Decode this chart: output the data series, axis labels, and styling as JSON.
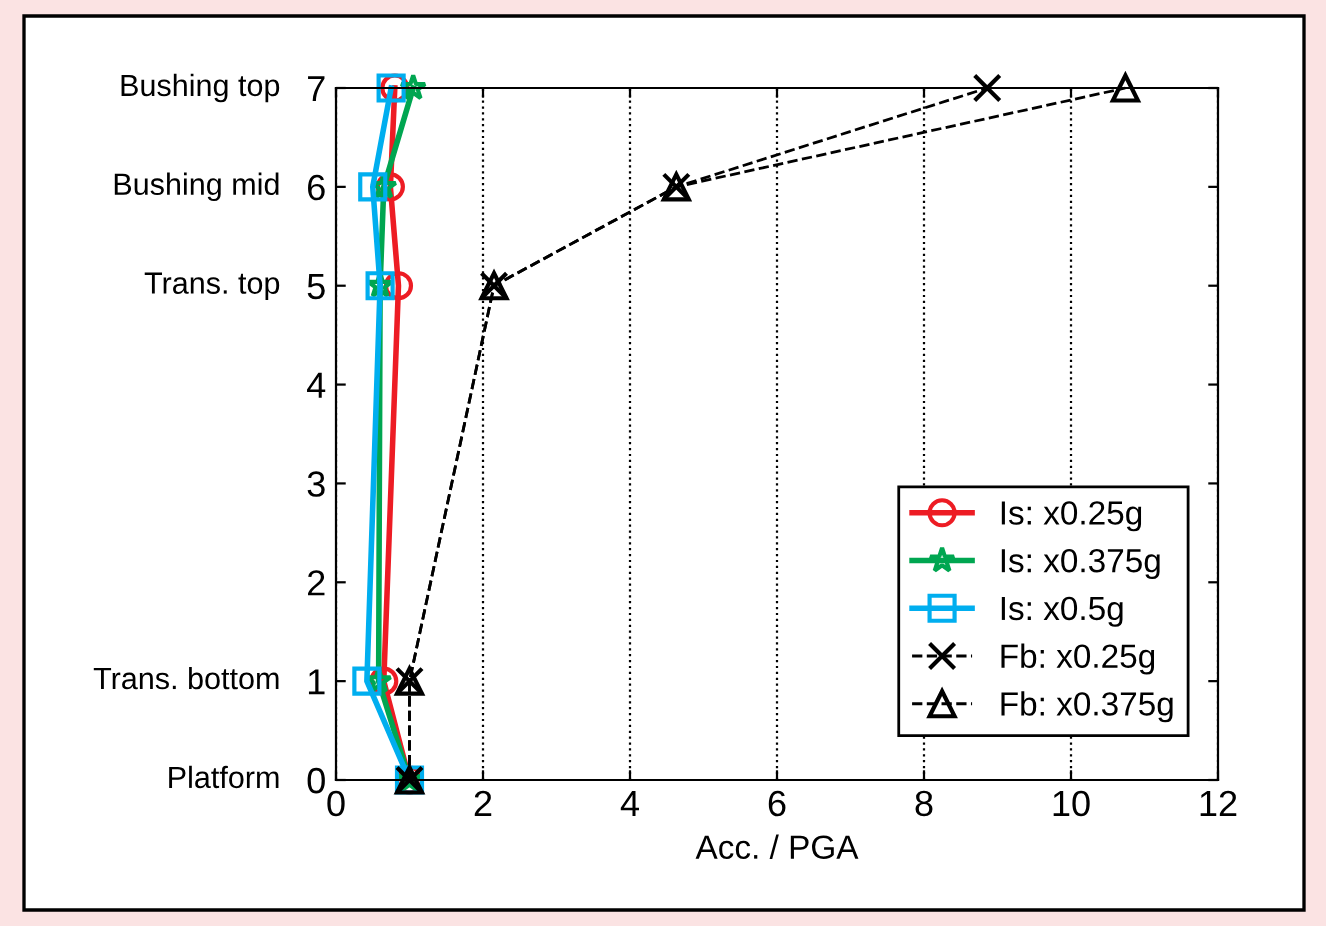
{
  "chart_data": {
    "type": "line",
    "xlabel": "Acc. / PGA",
    "xlim": [
      0,
      12
    ],
    "xticks": [
      0,
      2,
      4,
      6,
      8,
      10,
      12
    ],
    "ylim": [
      0,
      7
    ],
    "yticks": [
      0,
      1,
      2,
      3,
      4,
      5,
      6,
      7
    ],
    "grid": "x",
    "legend": "bottom right",
    "annotations": [
      "Platform",
      "Trans. bottom",
      "Trans. top",
      "Bushing mid",
      "Bushing top"
    ],
    "series": [
      {
        "name": "Is: x0.25g",
        "color": "#ed1c24",
        "marker": "circle",
        "line_style": "solid",
        "x": [
          1.0,
          0.65,
          0.85,
          0.74,
          0.8
        ],
        "values": [
          0,
          1,
          5,
          6,
          7
        ]
      },
      {
        "name": "Is: x0.375g",
        "color": "#00a651",
        "marker": "star",
        "line_style": "solid",
        "x": [
          1.0,
          0.58,
          0.6,
          0.65,
          1.05
        ],
        "values": [
          0,
          1,
          5,
          6,
          7
        ]
      },
      {
        "name": "Is: x0.5g",
        "color": "#00aeef",
        "marker": "square",
        "line_style": "solid",
        "x": [
          1.0,
          0.42,
          0.6,
          0.5,
          0.75
        ],
        "values": [
          0,
          1,
          5,
          6,
          7
        ]
      },
      {
        "name": "Fb: x0.25g",
        "color": "#000000",
        "marker": "cross",
        "line_style": "dashed",
        "x": [
          1.0,
          1.0,
          2.15,
          4.63,
          8.86
        ],
        "values": [
          0,
          1,
          5,
          6,
          7
        ]
      },
      {
        "name": "Fb: x0.375g",
        "color": "#000000",
        "marker": "triangle",
        "line_style": "dashed",
        "x": [
          1.0,
          1.0,
          2.15,
          4.63,
          10.74
        ],
        "values": [
          0,
          1,
          5,
          6,
          7
        ]
      }
    ]
  }
}
